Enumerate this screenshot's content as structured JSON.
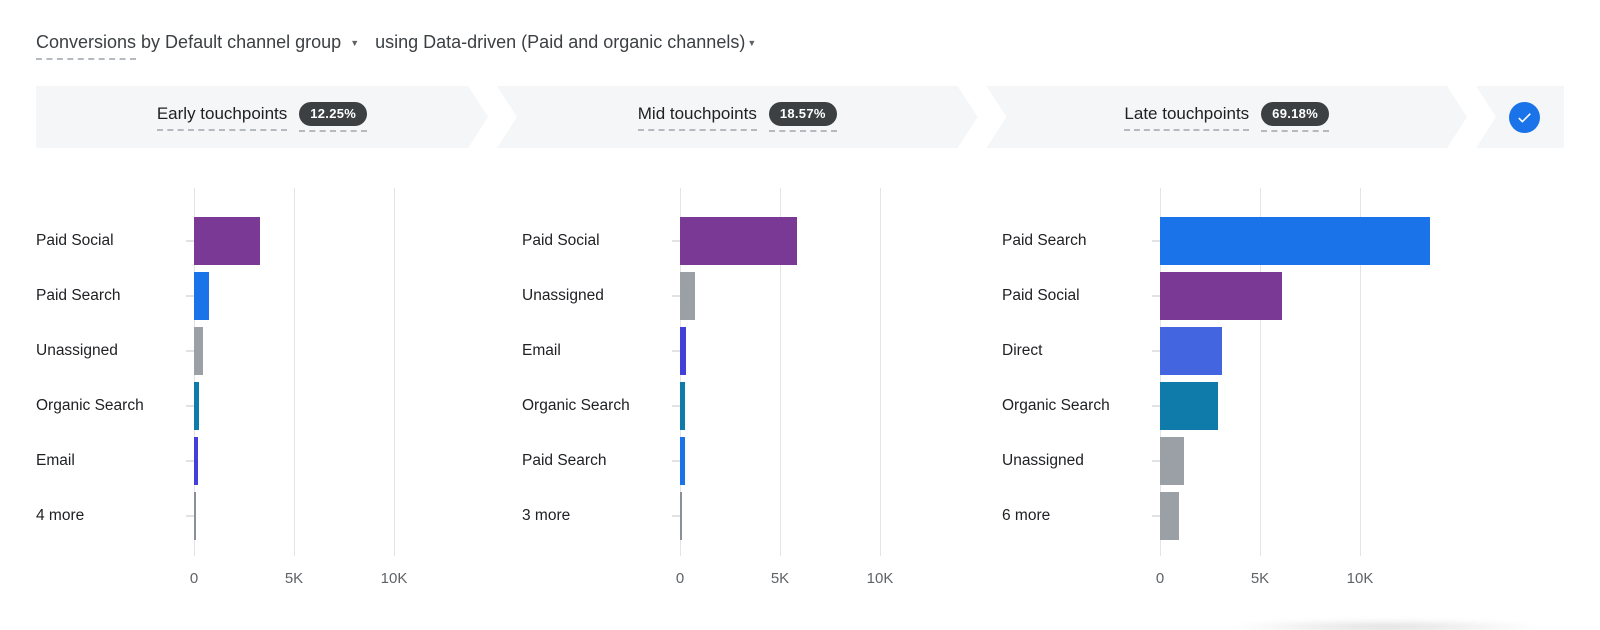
{
  "header": {
    "metric_label": "Conversions",
    "dimension_label": "by Default channel group",
    "model_label": "using Data-driven (Paid and organic channels)",
    "dropdown_icon": "▼"
  },
  "funnel": {
    "stages": [
      {
        "label": "Early touchpoints",
        "badge": "12.25%"
      },
      {
        "label": "Mid touchpoints",
        "badge": "18.57%"
      },
      {
        "label": "Late touchpoints",
        "badge": "69.18%"
      }
    ]
  },
  "colors": {
    "paid_social": "#7b3996",
    "paid_search": "#1a73e8",
    "unassigned": "#9aa0a6",
    "organic_search": "#0e7bab",
    "email": "#4340d9",
    "direct": "#4365e0",
    "more_overflow": "#8a9095",
    "badge_bg": "#3c4043",
    "check_circle": "#1a73e8",
    "gridline": "#e2e4e7",
    "axis_text": "#5f6368"
  },
  "chart_data": [
    {
      "type": "bar",
      "orientation": "horizontal",
      "title": "Early touchpoints",
      "share": "12.25%",
      "categories": [
        "Paid Social",
        "Paid Search",
        "Unassigned",
        "Organic Search",
        "Email",
        "4 more"
      ],
      "values": [
        3300,
        750,
        450,
        250,
        200,
        100
      ],
      "colors": [
        "#7b3996",
        "#1a73e8",
        "#9aa0a6",
        "#0e7bab",
        "#4340d9",
        "#8a9095"
      ],
      "xlabel": "",
      "ylabel": "",
      "xlim": [
        0,
        12500
      ],
      "xticks": [
        {
          "value": 0,
          "label": "0"
        },
        {
          "value": 5000,
          "label": "5K"
        },
        {
          "value": 10000,
          "label": "10K"
        }
      ],
      "grid": true,
      "legend": false
    },
    {
      "type": "bar",
      "orientation": "horizontal",
      "title": "Mid touchpoints",
      "share": "18.57%",
      "categories": [
        "Paid Social",
        "Unassigned",
        "Email",
        "Organic Search",
        "Paid Search",
        "3 more"
      ],
      "values": [
        5850,
        750,
        280,
        260,
        250,
        80
      ],
      "colors": [
        "#7b3996",
        "#9aa0a6",
        "#4340d9",
        "#0e7bab",
        "#1a73e8",
        "#8a9095"
      ],
      "xlabel": "",
      "ylabel": "",
      "xlim": [
        0,
        12500
      ],
      "xticks": [
        {
          "value": 0,
          "label": "0"
        },
        {
          "value": 5000,
          "label": "5K"
        },
        {
          "value": 10000,
          "label": "10K"
        }
      ],
      "grid": true,
      "legend": false
    },
    {
      "type": "bar",
      "orientation": "horizontal",
      "title": "Late touchpoints",
      "share": "69.18%",
      "categories": [
        "Paid Search",
        "Paid Social",
        "Direct",
        "Organic Search",
        "Unassigned",
        "6 more"
      ],
      "values": [
        13500,
        6100,
        3100,
        2900,
        1200,
        950
      ],
      "colors": [
        "#1a73e8",
        "#7b3996",
        "#4365e0",
        "#0e7bab",
        "#9aa0a6",
        "#9aa0a6"
      ],
      "xlabel": "",
      "ylabel": "",
      "xlim": [
        0,
        14500
      ],
      "xticks": [
        {
          "value": 0,
          "label": "0"
        },
        {
          "value": 5000,
          "label": "5K"
        },
        {
          "value": 10000,
          "label": "10K"
        }
      ],
      "grid": true,
      "legend": false
    }
  ]
}
